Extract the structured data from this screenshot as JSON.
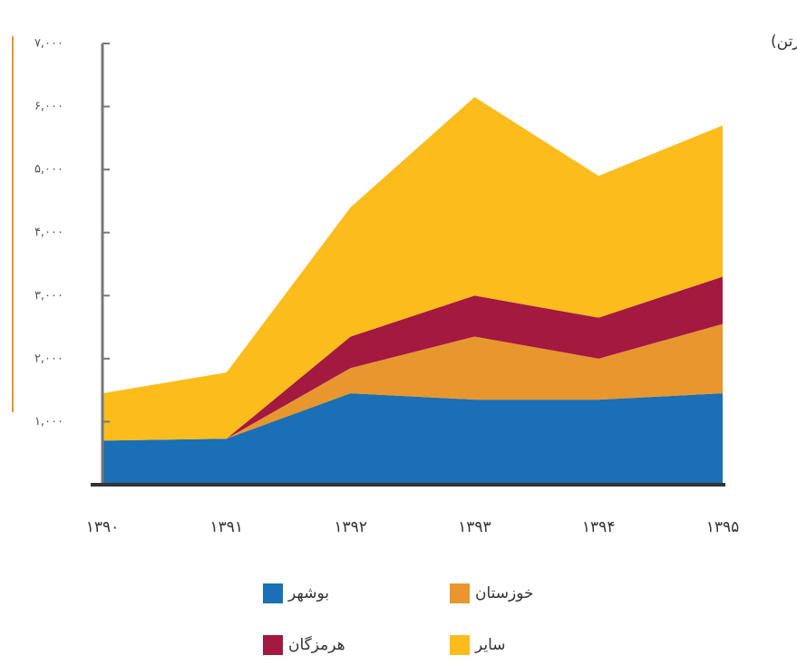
{
  "chart_data": {
    "type": "stacked_area",
    "subtitle": "(واحد هزارتن)",
    "categories": [
      "۱۳۹۰",
      "۱۳۹۱",
      "۱۳۹۲",
      "۱۳۹۳",
      "۱۳۹۴",
      "۱۳۹۵"
    ],
    "series": [
      {
        "name": "بوشهر",
        "color": "#1a6fb5",
        "values": [
          700,
          730,
          1450,
          1350,
          1350,
          1450
        ]
      },
      {
        "name": "خوزستان",
        "color": "#e8962e",
        "values": [
          0,
          0,
          400,
          1000,
          650,
          1100
        ]
      },
      {
        "name": "هرمزگان",
        "color": "#a3193f",
        "values": [
          0,
          0,
          500,
          650,
          650,
          750
        ]
      },
      {
        "name": "سایر",
        "color": "#fbbc1c",
        "values": [
          750,
          1050,
          2050,
          3150,
          2250,
          2400
        ]
      }
    ],
    "ylim": [
      0,
      7000
    ],
    "yticks": [
      {
        "value": 1000,
        "label": "۱,۰۰۰"
      },
      {
        "value": 2000,
        "label": "۲,۰۰۰"
      },
      {
        "value": 3000,
        "label": "۳,۰۰۰"
      },
      {
        "value": 4000,
        "label": "۴,۰۰۰"
      },
      {
        "value": 5000,
        "label": "۵,۰۰۰"
      },
      {
        "value": 6000,
        "label": "۶,۰۰۰"
      },
      {
        "value": 7000,
        "label": "۷,۰۰۰"
      }
    ]
  }
}
